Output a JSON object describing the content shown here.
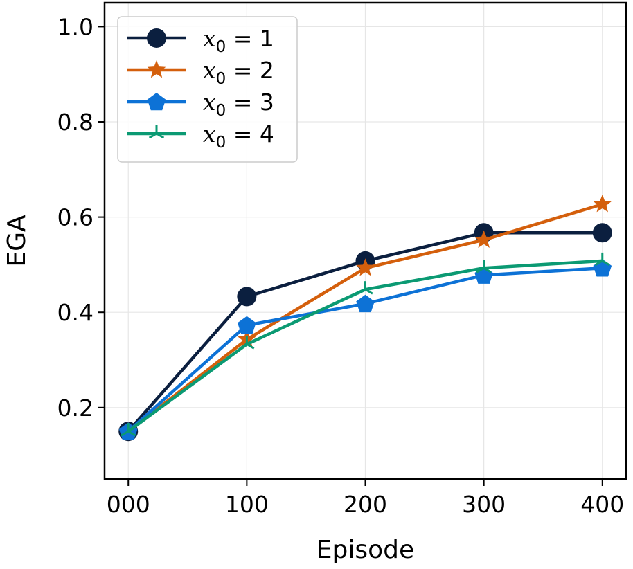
{
  "chart_data": {
    "type": "line",
    "x": [
      "000",
      "100",
      "200",
      "300",
      "400"
    ],
    "x_values": [
      0,
      100,
      200,
      300,
      400
    ],
    "xlabel": "Episode",
    "ylabel": "EGA",
    "ylim": [
      0.05,
      1.05
    ],
    "yticks": [
      "0.2",
      "0.4",
      "0.6",
      "0.8",
      "1.0"
    ],
    "ytick_values": [
      0.2,
      0.4,
      0.6,
      0.8,
      1.0
    ],
    "grid": true,
    "legend_position": "top-left",
    "series": [
      {
        "name": "x₀ = 1",
        "var": "x",
        "sub": "0",
        "rhs": " = 1",
        "color": "#0b1f3f",
        "marker": "circle",
        "values": [
          0.15,
          0.433,
          0.508,
          0.567,
          0.567
        ]
      },
      {
        "name": "x₀ = 2",
        "var": "x",
        "sub": "0",
        "rhs": " = 2",
        "color": "#d45f0c",
        "marker": "star",
        "values": [
          0.15,
          0.343,
          0.493,
          0.552,
          0.627
        ]
      },
      {
        "name": "x₀ = 3",
        "var": "x",
        "sub": "0",
        "rhs": " = 3",
        "color": "#0d72d6",
        "marker": "pentagon",
        "values": [
          0.15,
          0.373,
          0.418,
          0.478,
          0.493
        ]
      },
      {
        "name": "x₀ = 4",
        "var": "x",
        "sub": "0",
        "rhs": " = 4",
        "color": "#0b9a73",
        "marker": "tri",
        "values": [
          0.15,
          0.333,
          0.448,
          0.493,
          0.508
        ]
      }
    ]
  }
}
